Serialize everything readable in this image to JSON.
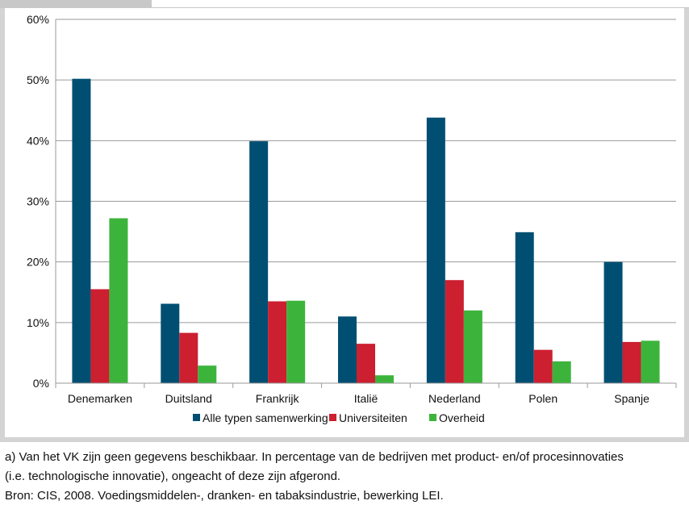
{
  "chart_data": {
    "type": "bar",
    "categories": [
      "Denemarken",
      "Duitsland",
      "Frankrijk",
      "Italië",
      "Nederland",
      "Polen",
      "Spanje"
    ],
    "series": [
      {
        "name": "Alle typen samenwerking",
        "color": "#004f72",
        "values": [
          50.2,
          13.1,
          39.9,
          11.0,
          43.8,
          24.9,
          20.0
        ]
      },
      {
        "name": "Universiteiten",
        "color": "#cc1f30",
        "values": [
          15.5,
          8.3,
          13.5,
          6.5,
          17.0,
          5.5,
          6.8
        ]
      },
      {
        "name": "Overheid",
        "color": "#3cb43c",
        "values": [
          27.2,
          2.9,
          13.6,
          1.3,
          12.0,
          3.6,
          7.0
        ]
      }
    ],
    "ylim": [
      0,
      60
    ],
    "yticks": [
      "0%",
      "10%",
      "20%",
      "30%",
      "40%",
      "50%",
      "60%"
    ],
    "grid": true,
    "legend_position": "bottom"
  },
  "footnotes": {
    "line1": "a) Van het VK zijn geen gegevens beschikbaar. In percentage van de bedrijven met product- en/of procesinnovaties",
    "line2": "(i.e. technologische innovatie), ongeacht of deze zijn afgerond.",
    "line3": "Bron: CIS, 2008. Voedingsmiddelen-, dranken- en tabaksindustrie, bewerking LEI."
  }
}
